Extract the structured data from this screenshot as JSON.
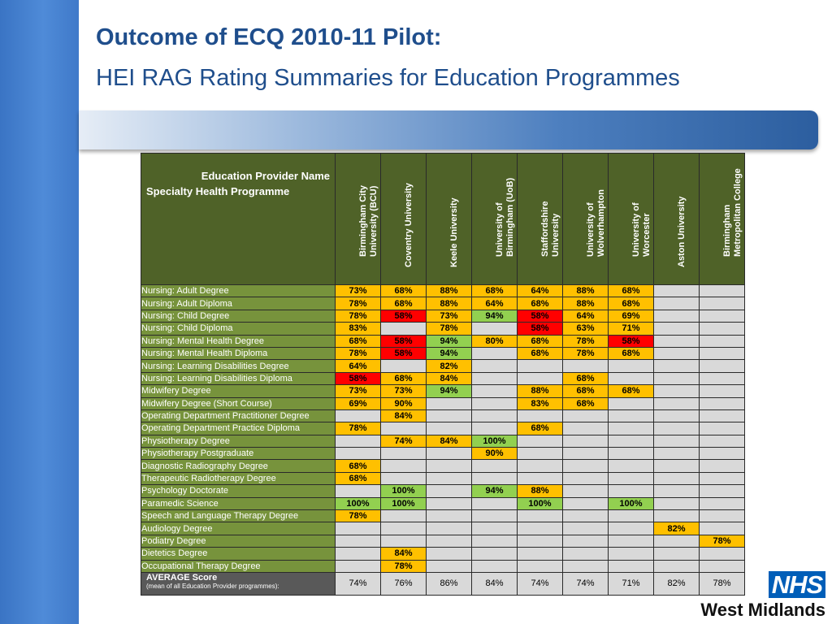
{
  "slide": {
    "title": "Outcome of ECQ 2010-11 Pilot:",
    "subtitle": "HEI RAG Rating Summaries for Education Programmes"
  },
  "table": {
    "header_line1": "Education Provider Name",
    "header_line2": "Specialty Health Programme",
    "columns": [
      [
        "Birmingham City",
        "University (BCU)"
      ],
      [
        "Coventry University"
      ],
      [
        "Keele University"
      ],
      [
        "University of",
        "Birmingham (UoB)"
      ],
      [
        "Staffordshire",
        "University"
      ],
      [
        "University of",
        "Wolverhampton"
      ],
      [
        "University of",
        "Worcester"
      ],
      [
        "Aston University"
      ],
      [
        "Birmingham",
        "Metropolitan College"
      ]
    ],
    "rows": [
      {
        "label": "Nursing: Adult Degree",
        "cells": [
          [
            "73%",
            "a"
          ],
          [
            "68%",
            "a"
          ],
          [
            "88%",
            "a"
          ],
          [
            "68%",
            "a"
          ],
          [
            "64%",
            "a"
          ],
          [
            "88%",
            "a"
          ],
          [
            "68%",
            "a"
          ],
          [
            "",
            "e"
          ],
          [
            "",
            "e"
          ]
        ]
      },
      {
        "label": "Nursing: Adult Diploma",
        "cells": [
          [
            "78%",
            "a"
          ],
          [
            "68%",
            "a"
          ],
          [
            "88%",
            "a"
          ],
          [
            "64%",
            "a"
          ],
          [
            "68%",
            "a"
          ],
          [
            "88%",
            "a"
          ],
          [
            "68%",
            "a"
          ],
          [
            "",
            "e"
          ],
          [
            "",
            "e"
          ]
        ]
      },
      {
        "label": "Nursing: Child Degree",
        "cells": [
          [
            "78%",
            "a"
          ],
          [
            "58%",
            "r"
          ],
          [
            "73%",
            "a"
          ],
          [
            "94%",
            "g"
          ],
          [
            "58%",
            "r"
          ],
          [
            "64%",
            "a"
          ],
          [
            "69%",
            "a"
          ],
          [
            "",
            "e"
          ],
          [
            "",
            "e"
          ]
        ]
      },
      {
        "label": "Nursing: Child Diploma",
        "cells": [
          [
            "83%",
            "a"
          ],
          [
            "",
            "e"
          ],
          [
            "78%",
            "a"
          ],
          [
            "",
            "e"
          ],
          [
            "58%",
            "r"
          ],
          [
            "63%",
            "a"
          ],
          [
            "71%",
            "a"
          ],
          [
            "",
            "e"
          ],
          [
            "",
            "e"
          ]
        ]
      },
      {
        "label": "Nursing: Mental Health Degree",
        "cells": [
          [
            "68%",
            "a"
          ],
          [
            "58%",
            "r"
          ],
          [
            "94%",
            "g"
          ],
          [
            "80%",
            "a"
          ],
          [
            "68%",
            "a"
          ],
          [
            "78%",
            "a"
          ],
          [
            "58%",
            "r"
          ],
          [
            "",
            "e"
          ],
          [
            "",
            "e"
          ]
        ]
      },
      {
        "label": "Nursing: Mental Health Diploma",
        "cells": [
          [
            "78%",
            "a"
          ],
          [
            "58%",
            "r"
          ],
          [
            "94%",
            "g"
          ],
          [
            "",
            "e"
          ],
          [
            "68%",
            "a"
          ],
          [
            "78%",
            "a"
          ],
          [
            "68%",
            "a"
          ],
          [
            "",
            "e"
          ],
          [
            "",
            "e"
          ]
        ]
      },
      {
        "label": "Nursing: Learning Disabilities Degree",
        "cells": [
          [
            "64%",
            "a"
          ],
          [
            "",
            "e"
          ],
          [
            "82%",
            "a"
          ],
          [
            "",
            "e"
          ],
          [
            "",
            "e"
          ],
          [
            "",
            "e"
          ],
          [
            "",
            "e"
          ],
          [
            "",
            "e"
          ],
          [
            "",
            "e"
          ]
        ]
      },
      {
        "label": "Nursing: Learning Disabilities Diploma",
        "cells": [
          [
            "58%",
            "r"
          ],
          [
            "68%",
            "a"
          ],
          [
            "84%",
            "a"
          ],
          [
            "",
            "e"
          ],
          [
            "",
            "e"
          ],
          [
            "68%",
            "a"
          ],
          [
            "",
            "e"
          ],
          [
            "",
            "e"
          ],
          [
            "",
            "e"
          ]
        ]
      },
      {
        "label": "Midwifery Degree",
        "cells": [
          [
            "73%",
            "a"
          ],
          [
            "73%",
            "a"
          ],
          [
            "94%",
            "g"
          ],
          [
            "",
            "e"
          ],
          [
            "88%",
            "a"
          ],
          [
            "68%",
            "a"
          ],
          [
            "68%",
            "a"
          ],
          [
            "",
            "e"
          ],
          [
            "",
            "e"
          ]
        ]
      },
      {
        "label": "Midwifery Degree (Short Course)",
        "cells": [
          [
            "69%",
            "a"
          ],
          [
            "90%",
            "a"
          ],
          [
            "",
            "e"
          ],
          [
            "",
            "e"
          ],
          [
            "83%",
            "a"
          ],
          [
            "68%",
            "a"
          ],
          [
            "",
            "e"
          ],
          [
            "",
            "e"
          ],
          [
            "",
            "e"
          ]
        ]
      },
      {
        "label": "Operating Department Practitioner Degree",
        "cells": [
          [
            "",
            "e"
          ],
          [
            "84%",
            "a"
          ],
          [
            "",
            "e"
          ],
          [
            "",
            "e"
          ],
          [
            "",
            "e"
          ],
          [
            "",
            "e"
          ],
          [
            "",
            "e"
          ],
          [
            "",
            "e"
          ],
          [
            "",
            "e"
          ]
        ]
      },
      {
        "label": "Operating Department Practice Diploma",
        "cells": [
          [
            "78%",
            "a"
          ],
          [
            "",
            "e"
          ],
          [
            "",
            "e"
          ],
          [
            "",
            "e"
          ],
          [
            "68%",
            "a"
          ],
          [
            "",
            "e"
          ],
          [
            "",
            "e"
          ],
          [
            "",
            "e"
          ],
          [
            "",
            "e"
          ]
        ]
      },
      {
        "label": "Physiotherapy Degree",
        "cells": [
          [
            "",
            "e"
          ],
          [
            "74%",
            "a"
          ],
          [
            "84%",
            "a"
          ],
          [
            "100%",
            "g"
          ],
          [
            "",
            "e"
          ],
          [
            "",
            "e"
          ],
          [
            "",
            "e"
          ],
          [
            "",
            "e"
          ],
          [
            "",
            "e"
          ]
        ]
      },
      {
        "label": "Physiotherapy Postgraduate",
        "cells": [
          [
            "",
            "e"
          ],
          [
            "",
            "e"
          ],
          [
            "",
            "e"
          ],
          [
            "90%",
            "a"
          ],
          [
            "",
            "e"
          ],
          [
            "",
            "e"
          ],
          [
            "",
            "e"
          ],
          [
            "",
            "e"
          ],
          [
            "",
            "e"
          ]
        ]
      },
      {
        "label": "Diagnostic Radiography  Degree",
        "cells": [
          [
            "68%",
            "a"
          ],
          [
            "",
            "e"
          ],
          [
            "",
            "e"
          ],
          [
            "",
            "e"
          ],
          [
            "",
            "e"
          ],
          [
            "",
            "e"
          ],
          [
            "",
            "e"
          ],
          [
            "",
            "e"
          ],
          [
            "",
            "e"
          ]
        ]
      },
      {
        "label": "Therapeutic Radiotherapy  Degree",
        "cells": [
          [
            "68%",
            "a"
          ],
          [
            "",
            "e"
          ],
          [
            "",
            "e"
          ],
          [
            "",
            "e"
          ],
          [
            "",
            "e"
          ],
          [
            "",
            "e"
          ],
          [
            "",
            "e"
          ],
          [
            "",
            "e"
          ],
          [
            "",
            "e"
          ]
        ]
      },
      {
        "label": "Psychology Doctorate",
        "cells": [
          [
            "",
            "e"
          ],
          [
            "100%",
            "g"
          ],
          [
            "",
            "e"
          ],
          [
            "94%",
            "g"
          ],
          [
            "88%",
            "a"
          ],
          [
            "",
            "e"
          ],
          [
            "",
            "e"
          ],
          [
            "",
            "e"
          ],
          [
            "",
            "e"
          ]
        ]
      },
      {
        "label": "Paramedic Science",
        "cells": [
          [
            "100%",
            "g"
          ],
          [
            "100%",
            "g"
          ],
          [
            "",
            "e"
          ],
          [
            "",
            "e"
          ],
          [
            "100%",
            "g"
          ],
          [
            "",
            "e"
          ],
          [
            "100%",
            "g"
          ],
          [
            "",
            "e"
          ],
          [
            "",
            "e"
          ]
        ]
      },
      {
        "label": "Speech and Language Therapy  Degree",
        "cells": [
          [
            "78%",
            "a"
          ],
          [
            "",
            "e"
          ],
          [
            "",
            "e"
          ],
          [
            "",
            "e"
          ],
          [
            "",
            "e"
          ],
          [
            "",
            "e"
          ],
          [
            "",
            "e"
          ],
          [
            "",
            "e"
          ],
          [
            "",
            "e"
          ]
        ]
      },
      {
        "label": "Audiology  Degree",
        "cells": [
          [
            "",
            "e"
          ],
          [
            "",
            "e"
          ],
          [
            "",
            "e"
          ],
          [
            "",
            "e"
          ],
          [
            "",
            "e"
          ],
          [
            "",
            "e"
          ],
          [
            "",
            "e"
          ],
          [
            "82%",
            "a"
          ],
          [
            "",
            "e"
          ]
        ]
      },
      {
        "label": "Podiatry  Degree",
        "cells": [
          [
            "",
            "e"
          ],
          [
            "",
            "e"
          ],
          [
            "",
            "e"
          ],
          [
            "",
            "e"
          ],
          [
            "",
            "e"
          ],
          [
            "",
            "e"
          ],
          [
            "",
            "e"
          ],
          [
            "",
            "e"
          ],
          [
            "78%",
            "a"
          ]
        ]
      },
      {
        "label": "Dietetics Degree",
        "cells": [
          [
            "",
            "e"
          ],
          [
            "84%",
            "a"
          ],
          [
            "",
            "e"
          ],
          [
            "",
            "e"
          ],
          [
            "",
            "e"
          ],
          [
            "",
            "e"
          ],
          [
            "",
            "e"
          ],
          [
            "",
            "e"
          ],
          [
            "",
            "e"
          ]
        ]
      },
      {
        "label": "Occupational Therapy Degree",
        "cells": [
          [
            "",
            "e"
          ],
          [
            "78%",
            "a"
          ],
          [
            "",
            "e"
          ],
          [
            "",
            "e"
          ],
          [
            "",
            "e"
          ],
          [
            "",
            "e"
          ],
          [
            "",
            "e"
          ],
          [
            "",
            "e"
          ],
          [
            "",
            "e"
          ]
        ]
      }
    ],
    "average": {
      "label": "AVERAGE Score",
      "sublabel": "(mean of all Education Provider programmes):",
      "values": [
        "74%",
        "76%",
        "86%",
        "84%",
        "74%",
        "74%",
        "71%",
        "82%",
        "78%"
      ]
    }
  },
  "colors": {
    "amber": "#ffc000",
    "red": "#ff0000",
    "green": "#92d050",
    "empty": "#d9d9d9",
    "header": "#4f6228",
    "row_label": "#77933c"
  },
  "logo": {
    "nhs": "NHS",
    "region": "West Midlands"
  }
}
